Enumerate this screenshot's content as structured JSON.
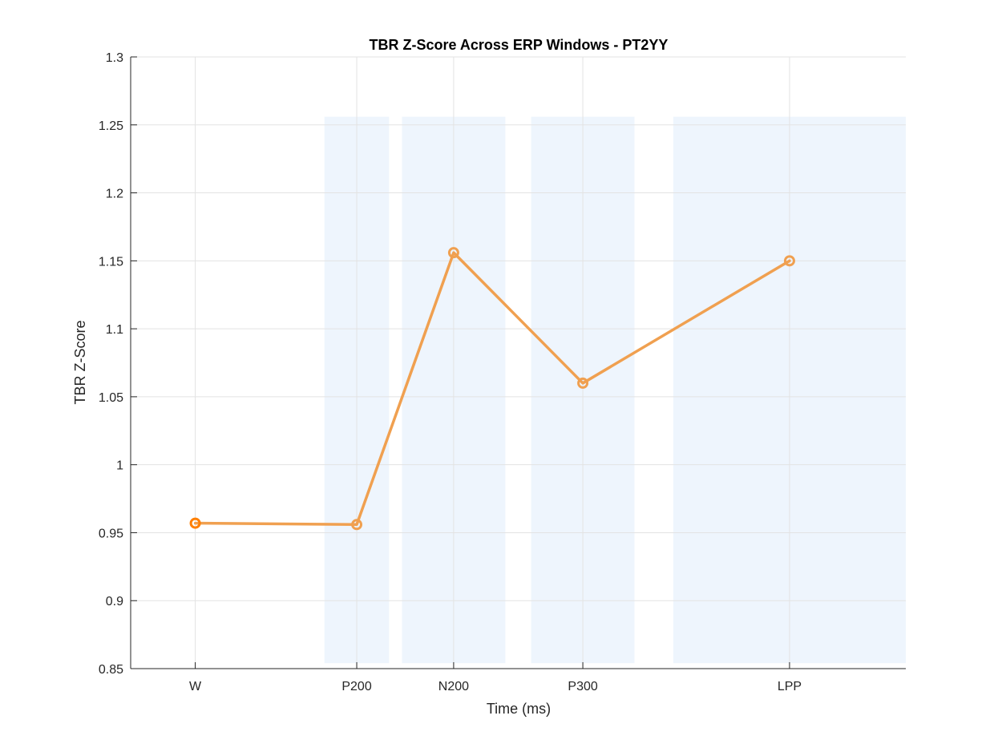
{
  "chart_data": {
    "type": "line",
    "title": "TBR Z-Score Across ERP Windows - PT2YY",
    "xlabel": "Time (ms)",
    "ylabel": "TBR Z-Score",
    "ylim": [
      0.85,
      1.3
    ],
    "xlim": [
      -100,
      1100
    ],
    "yticks": [
      "0.85",
      "0.9",
      "0.95",
      "1",
      "1.05",
      "1.1",
      "1.15",
      "1.2",
      "1.25",
      "1.3"
    ],
    "categories": [
      "W",
      "P200",
      "N200",
      "P300",
      "LPP"
    ],
    "x": [
      0,
      250,
      400,
      600,
      920
    ],
    "values": [
      0.957,
      0.956,
      1.156,
      1.06,
      1.15
    ],
    "grid": true,
    "windows": [
      {
        "label": "P200",
        "start": 200,
        "end": 300
      },
      {
        "label": "N200",
        "start": 320,
        "end": 480
      },
      {
        "label": "P300",
        "start": 520,
        "end": 680
      },
      {
        "label": "LPP",
        "start": 740,
        "end": 1100
      }
    ],
    "window_top": 1.256,
    "window_bottom": 0.854,
    "colors": {
      "line": "#f0a050",
      "line_accent": "#ff7f00",
      "window_fill": "#eef5fd",
      "grid": "#e3e3e3",
      "axis": "#262626"
    }
  }
}
